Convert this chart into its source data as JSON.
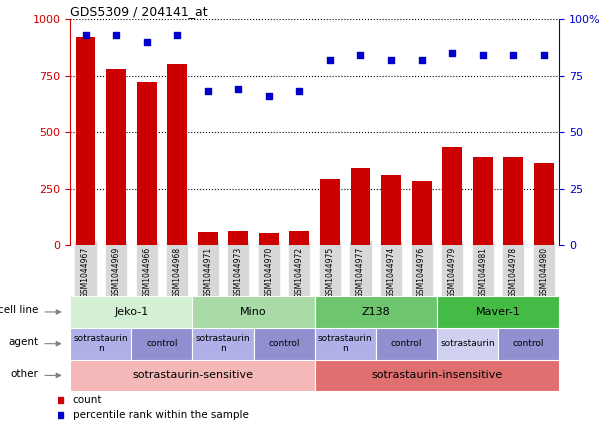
{
  "title": "GDS5309 / 204141_at",
  "samples": [
    "GSM1044967",
    "GSM1044969",
    "GSM1044966",
    "GSM1044968",
    "GSM1044971",
    "GSM1044973",
    "GSM1044970",
    "GSM1044972",
    "GSM1044975",
    "GSM1044977",
    "GSM1044974",
    "GSM1044976",
    "GSM1044979",
    "GSM1044981",
    "GSM1044978",
    "GSM1044980"
  ],
  "counts": [
    920,
    780,
    720,
    800,
    60,
    65,
    55,
    65,
    295,
    340,
    310,
    285,
    435,
    390,
    390,
    365
  ],
  "percentile": [
    93,
    93,
    90,
    93,
    68,
    69,
    66,
    68,
    82,
    84,
    82,
    82,
    85,
    84,
    84,
    84
  ],
  "bar_color": "#cc0000",
  "dot_color": "#0000cc",
  "ylim_left": [
    0,
    1000
  ],
  "ylim_right": [
    0,
    100
  ],
  "yticks_left": [
    0,
    250,
    500,
    750,
    1000
  ],
  "yticks_right": [
    0,
    25,
    50,
    75,
    100
  ],
  "cell_line_groups": [
    {
      "label": "Jeko-1",
      "start": 0,
      "end": 4,
      "color": "#d4f0d4"
    },
    {
      "label": "Mino",
      "start": 4,
      "end": 8,
      "color": "#a8dba8"
    },
    {
      "label": "Z138",
      "start": 8,
      "end": 12,
      "color": "#6dc56d"
    },
    {
      "label": "Maver-1",
      "start": 12,
      "end": 16,
      "color": "#44bb44"
    }
  ],
  "agent_groups": [
    {
      "label": "sotrastaurin\nn",
      "start": 0,
      "end": 2,
      "color": "#b0b0e8"
    },
    {
      "label": "control",
      "start": 2,
      "end": 4,
      "color": "#9090d0"
    },
    {
      "label": "sotrastaurin\nn",
      "start": 4,
      "end": 6,
      "color": "#b0b0e8"
    },
    {
      "label": "control",
      "start": 6,
      "end": 8,
      "color": "#9090d0"
    },
    {
      "label": "sotrastaurin\nn",
      "start": 8,
      "end": 10,
      "color": "#b0b0e8"
    },
    {
      "label": "control",
      "start": 10,
      "end": 12,
      "color": "#9090d0"
    },
    {
      "label": "sotrastaurin",
      "start": 12,
      "end": 14,
      "color": "#d0d0f0"
    },
    {
      "label": "control",
      "start": 14,
      "end": 16,
      "color": "#9090d0"
    }
  ],
  "other_groups": [
    {
      "label": "sotrastaurin-sensitive",
      "start": 0,
      "end": 8,
      "color": "#f4b8b8"
    },
    {
      "label": "sotrastaurin-insensitive",
      "start": 8,
      "end": 16,
      "color": "#e07070"
    }
  ],
  "legend_count_color": "#cc0000",
  "legend_dot_color": "#0000cc",
  "chart_bg": "#ffffff",
  "tick_bg": "#d8d8d8"
}
